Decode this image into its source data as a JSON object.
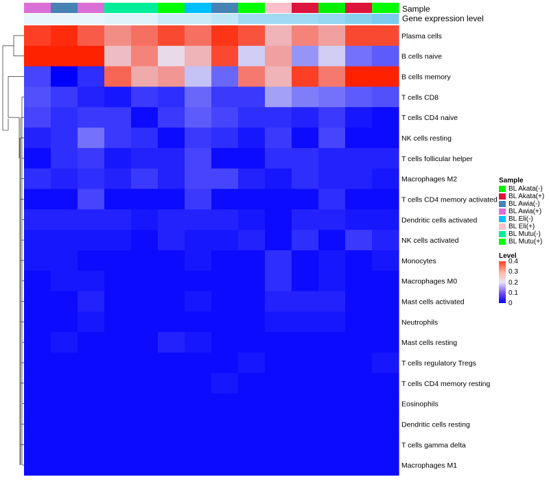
{
  "annotation_labels": {
    "sample": "Sample",
    "gene_expression": "Gene expression level"
  },
  "sample_legend": {
    "title": "Sample",
    "items": [
      {
        "label": "BL Akata(-)",
        "color": "#00ee00"
      },
      {
        "label": "BL Akata(+)",
        "color": "#dc143c"
      },
      {
        "label": "BL Awia(-)",
        "color": "#4682b4"
      },
      {
        "label": "BL Awia(+)",
        "color": "#da70d6"
      },
      {
        "label": "BL Eli(-)",
        "color": "#00bfff"
      },
      {
        "label": "BL Eli(+)",
        "color": "#ffc0cb"
      },
      {
        "label": "BL Mutu(-)",
        "color": "#00ee99"
      },
      {
        "label": "BL Mutu(+)",
        "color": "#00ff00"
      }
    ]
  },
  "level_legend": {
    "title": "Level",
    "ticks": [
      "0.4",
      "0.3",
      "0.2",
      "0.1",
      "0"
    ]
  },
  "chart_data": {
    "type": "heatmap",
    "color_scale": {
      "min": 0,
      "max": 0.4,
      "low": "#0000ff",
      "mid": "#e8e4f4",
      "high": "#ff2200"
    },
    "columns": [
      {
        "sample": "BL Awia(+)",
        "sample_color": "#da70d6",
        "gene_expression_color": "#e8f6fc"
      },
      {
        "sample": "BL Awia(-)",
        "sample_color": "#4682b4",
        "gene_expression_color": "#e8f6fc"
      },
      {
        "sample": "BL Awia(+)",
        "sample_color": "#da70d6",
        "gene_expression_color": "#e8f6fc"
      },
      {
        "sample": "BL Mutu(-)",
        "sample_color": "#00ee99",
        "gene_expression_color": "#dff2fa"
      },
      {
        "sample": "BL Mutu(-)",
        "sample_color": "#00ee99",
        "gene_expression_color": "#dff2fa"
      },
      {
        "sample": "BL Mutu(+)",
        "sample_color": "#00ff00",
        "gene_expression_color": "#cbebf8"
      },
      {
        "sample": "BL Eli(-)",
        "sample_color": "#00bfff",
        "gene_expression_color": "#cbebf8"
      },
      {
        "sample": "BL Awia(-)",
        "sample_color": "#4682b4",
        "gene_expression_color": "#bfe6f6"
      },
      {
        "sample": "BL Mutu(+)",
        "sample_color": "#00ff00",
        "gene_expression_color": "#9fdaf2"
      },
      {
        "sample": "BL Eli(+)",
        "sample_color": "#ffc0cb",
        "gene_expression_color": "#9fdaf2"
      },
      {
        "sample": "BL Akata(+)",
        "sample_color": "#dc143c",
        "gene_expression_color": "#9fdaf2"
      },
      {
        "sample": "BL Akata(-)",
        "sample_color": "#00ee00",
        "gene_expression_color": "#95d6f1"
      },
      {
        "sample": "BL Akata(+)",
        "sample_color": "#dc143c",
        "gene_expression_color": "#87d1ef"
      },
      {
        "sample": "BL Mutu(+)",
        "sample_color": "#00ff00",
        "gene_expression_color": "#7acbee"
      }
    ],
    "rows": [
      "Plasma cells",
      "B cells naive",
      "B cells memory",
      "T cells CD8",
      "T cells CD4 naive",
      "NK cells resting",
      "T cells follicular helper",
      "Macrophages M2",
      "T cells CD4 memory activated",
      "Dendritic cells activated",
      "NK cells activated",
      "Monocytes",
      "Macrophages M0",
      "Mast cells activated",
      "Neutrophils",
      "Mast cells resting",
      "T cells regulatory  Tregs",
      "T cells CD4 memory resting",
      "Eosinophils",
      "Dendritic cells resting",
      "T cells gamma delta",
      "Macrophages M1"
    ],
    "values": [
      [
        0.37,
        0.39,
        0.34,
        0.29,
        0.32,
        0.36,
        0.32,
        0.38,
        0.35,
        0.25,
        0.3,
        0.27,
        0.36,
        0.36
      ],
      [
        0.4,
        0.4,
        0.4,
        0.24,
        0.3,
        0.21,
        0.25,
        0.36,
        0.18,
        0.27,
        0.13,
        0.18,
        0.1,
        0.08
      ],
      [
        0.06,
        0.0,
        0.04,
        0.33,
        0.26,
        0.28,
        0.17,
        0.09,
        0.31,
        0.25,
        0.37,
        0.31,
        0.4,
        0.4
      ],
      [
        0.07,
        0.05,
        0.03,
        0.02,
        0.05,
        0.04,
        0.09,
        0.05,
        0.05,
        0.14,
        0.11,
        0.1,
        0.08,
        0.07
      ],
      [
        0.06,
        0.04,
        0.05,
        0.05,
        0.01,
        0.05,
        0.08,
        0.06,
        0.04,
        0.04,
        0.03,
        0.05,
        0.02,
        0.01
      ],
      [
        0.03,
        0.04,
        0.1,
        0.05,
        0.04,
        0.01,
        0.05,
        0.04,
        0.02,
        0.05,
        0.01,
        0.06,
        0.01,
        0.01
      ],
      [
        0.01,
        0.04,
        0.05,
        0.02,
        0.03,
        0.03,
        0.06,
        0.01,
        0.01,
        0.04,
        0.04,
        0.03,
        0.03,
        0.03
      ],
      [
        0.04,
        0.03,
        0.04,
        0.03,
        0.05,
        0.03,
        0.06,
        0.06,
        0.03,
        0.02,
        0.04,
        0.03,
        0.03,
        0.02
      ],
      [
        0.01,
        0.01,
        0.06,
        0.01,
        0.01,
        0.01,
        0.05,
        0.01,
        0.01,
        0.01,
        0.01,
        0.04,
        0.01,
        0.01
      ],
      [
        0.03,
        0.03,
        0.03,
        0.03,
        0.02,
        0.03,
        0.03,
        0.03,
        0.02,
        0.01,
        0.03,
        0.03,
        0.02,
        0.02
      ],
      [
        0.02,
        0.02,
        0.02,
        0.02,
        0.01,
        0.03,
        0.02,
        0.02,
        0.03,
        0.01,
        0.04,
        0.01,
        0.05,
        0.03
      ],
      [
        0.02,
        0.02,
        0.01,
        0.01,
        0.01,
        0.01,
        0.02,
        0.01,
        0.01,
        0.04,
        0.01,
        0.02,
        0.01,
        0.02
      ],
      [
        0.01,
        0.02,
        0.02,
        0.01,
        0.01,
        0.01,
        0.01,
        0.01,
        0.01,
        0.04,
        0.01,
        0.02,
        0.01,
        0.01
      ],
      [
        0.01,
        0.01,
        0.03,
        0.01,
        0.01,
        0.01,
        0.02,
        0.01,
        0.01,
        0.03,
        0.03,
        0.03,
        0.01,
        0.01
      ],
      [
        0.01,
        0.01,
        0.02,
        0.01,
        0.01,
        0.01,
        0.01,
        0.01,
        0.01,
        0.02,
        0.02,
        0.02,
        0.01,
        0.01
      ],
      [
        0.01,
        0.02,
        0.01,
        0.01,
        0.01,
        0.03,
        0.02,
        0.01,
        0.01,
        0.01,
        0.01,
        0.01,
        0.01,
        0.01
      ],
      [
        0.01,
        0.01,
        0.01,
        0.01,
        0.01,
        0.01,
        0.01,
        0.01,
        0.02,
        0.01,
        0.01,
        0.01,
        0.01,
        0.02
      ],
      [
        0.01,
        0.01,
        0.01,
        0.01,
        0.01,
        0.01,
        0.01,
        0.02,
        0.01,
        0.01,
        0.01,
        0.01,
        0.01,
        0.01
      ],
      [
        0.01,
        0.01,
        0.01,
        0.01,
        0.01,
        0.01,
        0.01,
        0.01,
        0.01,
        0.01,
        0.01,
        0.01,
        0.01,
        0.01
      ],
      [
        0.01,
        0.01,
        0.01,
        0.01,
        0.01,
        0.01,
        0.01,
        0.01,
        0.01,
        0.01,
        0.01,
        0.01,
        0.01,
        0.01
      ],
      [
        0.01,
        0.01,
        0.01,
        0.01,
        0.01,
        0.01,
        0.01,
        0.01,
        0.01,
        0.01,
        0.01,
        0.01,
        0.01,
        0.01
      ],
      [
        0.01,
        0.01,
        0.01,
        0.01,
        0.01,
        0.01,
        0.01,
        0.01,
        0.01,
        0.01,
        0.01,
        0.01,
        0.01,
        0.01
      ]
    ]
  }
}
